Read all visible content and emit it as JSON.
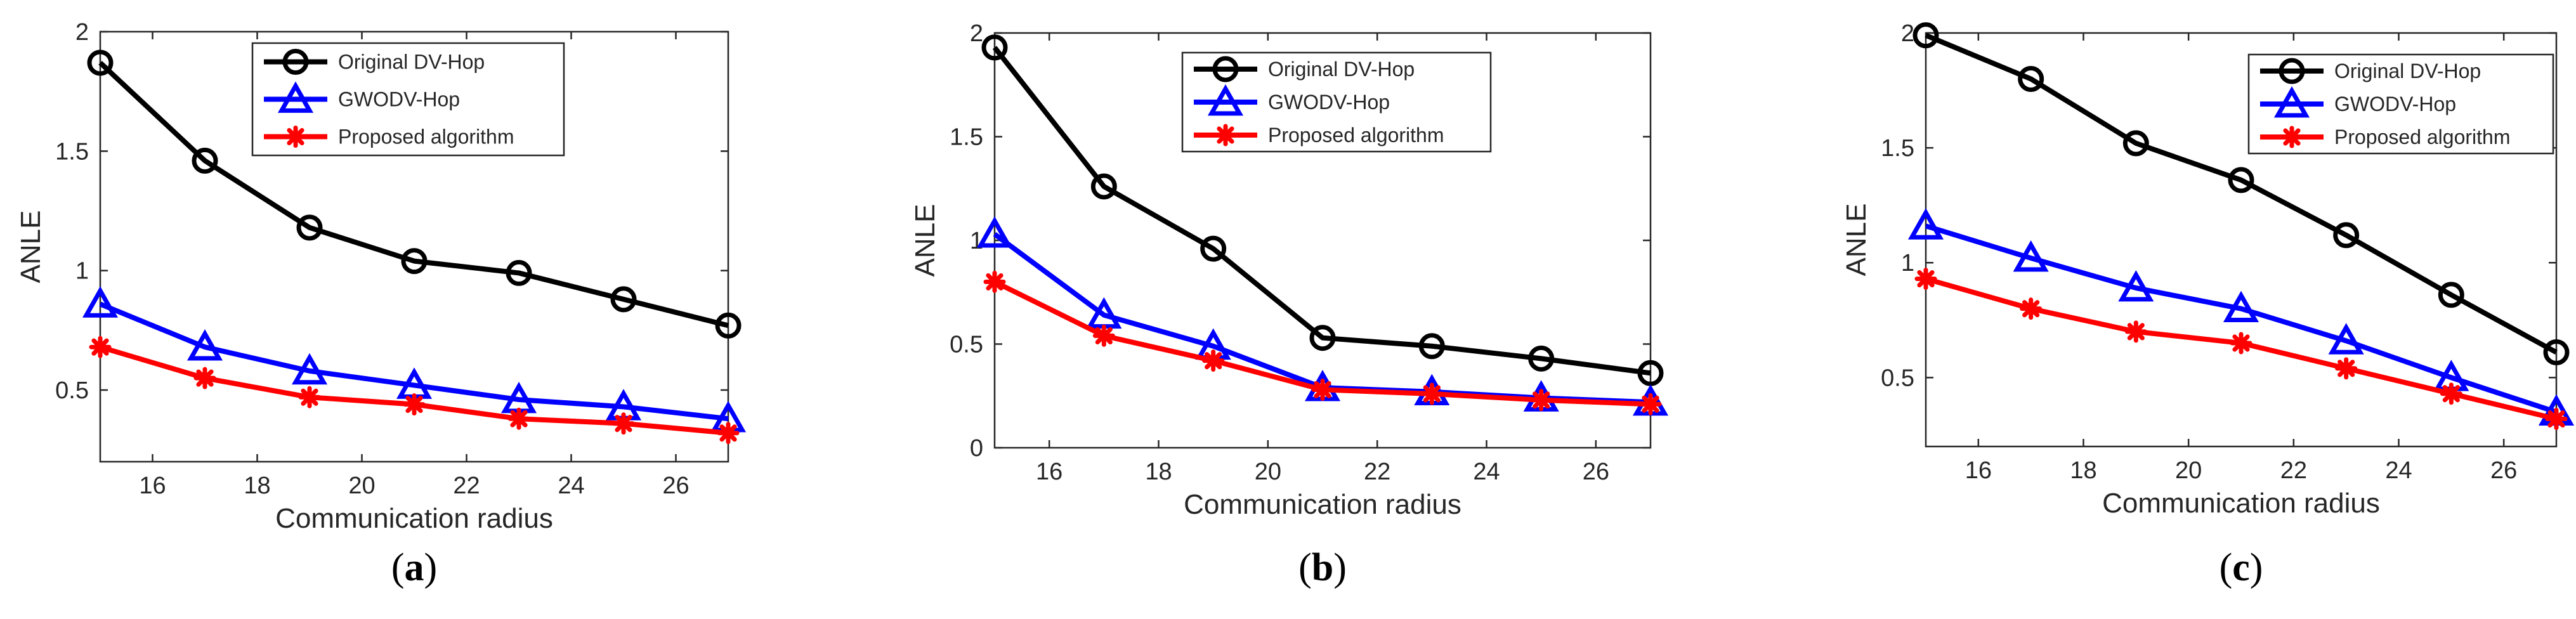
{
  "legend_labels": [
    "Original DV-Hop",
    "GWODV-Hop",
    "Proposed algorithm"
  ],
  "chart_data": [
    {
      "type": "line",
      "caption_letter": "a",
      "xlabel": "Communication radius",
      "ylabel": "ANLE",
      "xlim": [
        15,
        27
      ],
      "ylim": [
        0.2,
        2
      ],
      "xticks": [
        16,
        18,
        20,
        22,
        24,
        26
      ],
      "yticks": [
        0.5,
        1,
        1.5,
        2
      ],
      "ytick_labels": [
        "0.5",
        "1",
        "1.5",
        "2"
      ],
      "legend_position": "top-center",
      "x": [
        15,
        17,
        19,
        21,
        23,
        25,
        27
      ],
      "series": [
        {
          "name": "Original DV-Hop",
          "color": "#000000",
          "marker": "circle",
          "values": [
            1.87,
            1.46,
            1.18,
            1.04,
            0.99,
            0.88,
            0.77
          ]
        },
        {
          "name": "GWODV-Hop",
          "color": "#0000ff",
          "marker": "triangle",
          "values": [
            0.86,
            0.68,
            0.58,
            0.52,
            0.46,
            0.43,
            0.38
          ]
        },
        {
          "name": "Proposed algorithm",
          "color": "#ff0000",
          "marker": "asterisk",
          "values": [
            0.68,
            0.55,
            0.47,
            0.44,
            0.38,
            0.36,
            0.32
          ]
        }
      ]
    },
    {
      "type": "line",
      "caption_letter": "b",
      "xlabel": "Communication radius",
      "ylabel": "ANLE",
      "xlim": [
        15,
        27
      ],
      "ylim": [
        0,
        2
      ],
      "xticks": [
        16,
        18,
        20,
        22,
        24,
        26
      ],
      "yticks": [
        0,
        0.5,
        1,
        1.5,
        2
      ],
      "ytick_labels": [
        "0",
        "0.5",
        "1",
        "1.5",
        "2"
      ],
      "legend_position": "top-right",
      "x": [
        15,
        17,
        19,
        21,
        23,
        25,
        27
      ],
      "series": [
        {
          "name": "Original DV-Hop",
          "color": "#000000",
          "marker": "circle",
          "values": [
            1.93,
            1.26,
            0.96,
            0.53,
            0.49,
            0.43,
            0.36
          ]
        },
        {
          "name": "GWODV-Hop",
          "color": "#0000ff",
          "marker": "triangle",
          "values": [
            1.03,
            0.64,
            0.49,
            0.29,
            0.27,
            0.24,
            0.22
          ]
        },
        {
          "name": "Proposed algorithm",
          "color": "#ff0000",
          "marker": "asterisk",
          "values": [
            0.8,
            0.54,
            0.42,
            0.28,
            0.26,
            0.23,
            0.21
          ]
        }
      ]
    },
    {
      "type": "line",
      "caption_letter": "c",
      "xlabel": "Communication radius",
      "ylabel": "ANLE",
      "xlim": [
        15,
        27
      ],
      "ylim": [
        0.2,
        2
      ],
      "xticks": [
        16,
        18,
        20,
        22,
        24,
        26
      ],
      "yticks": [
        0.5,
        1,
        1.5,
        2
      ],
      "ytick_labels": [
        "0.5",
        "1",
        "1.5",
        "2"
      ],
      "legend_position": "top-right",
      "x": [
        15,
        17,
        19,
        21,
        23,
        25,
        27
      ],
      "series": [
        {
          "name": "Original DV-Hop",
          "color": "#000000",
          "marker": "circle",
          "values": [
            1.99,
            1.8,
            1.52,
            1.36,
            1.12,
            0.86,
            0.61
          ]
        },
        {
          "name": "GWODV-Hop",
          "color": "#0000ff",
          "marker": "triangle",
          "values": [
            1.16,
            1.02,
            0.89,
            0.8,
            0.66,
            0.5,
            0.35
          ]
        },
        {
          "name": "Proposed algorithm",
          "color": "#ff0000",
          "marker": "asterisk",
          "values": [
            0.93,
            0.8,
            0.7,
            0.65,
            0.54,
            0.43,
            0.32
          ]
        }
      ]
    }
  ]
}
